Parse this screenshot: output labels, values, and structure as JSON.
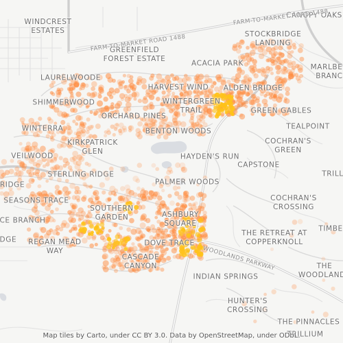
{
  "map": {
    "accent_color": "#ff8a3d",
    "hotspot_color": "#ffc21a",
    "road_labels": [
      "FARM-TO-MARKET ROAD 1488",
      "FARM-TO-MARKET ROAD 1488",
      "WOODLANDS PARKWAY"
    ],
    "places": [
      "WINDCREST\nESTATES",
      "CANOPY OAKS",
      "STOCKBRIDGE\nLANDING",
      "GREENFIELD\nFOREST ESTATE",
      "MARLBER\nBRANC",
      "ACACIA PARK",
      "LAURELWOODE",
      "HARVEST WIND",
      "ALDEN BRIDGE",
      "SHIMMERWOOD",
      "WINTERGREEN\nTRAIL",
      "GREEN GABLES",
      "ORCHARD PINES",
      "TEALPOINT",
      "WINTERRA",
      "BENTON WOODS",
      "COCHRAN'S\nGREEN",
      "KIRKPATRICK\nGLEN",
      "VEILWOOD",
      "HAYDEN'S RUN",
      "CAPSTONE",
      "STERLING RIDGE",
      "TRILL",
      "RIDGE",
      "PALMER WOODS",
      "SEASONS TRACE",
      "COCHRAN'S\nCROSSING",
      "SOUTHERN\nGARDEN",
      "ASHBURY\nSQUARE",
      "CE BRANCH",
      "TIMBER",
      "THE RETREAT AT\nCOPPERKNOLL",
      "REGAN MEAD\nWAY",
      "DOVE TRACE",
      "IDGE",
      "CASCADE\nCANYON",
      "THE\nWOODLANDS",
      "INDIAN SPRINGS",
      "HUNTER'S\nCROSSING",
      "THE PINNACLES",
      "TRILLIUM"
    ],
    "attribution": "Map tiles by Carto, under CC BY 3.0. Data by OpenStreetMap, under ODbL."
  }
}
